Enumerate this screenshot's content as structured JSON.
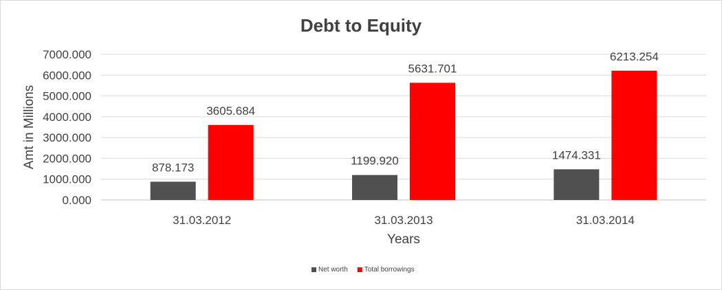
{
  "chart_data": {
    "type": "bar",
    "title": "Debt to Equity",
    "xlabel": "Years",
    "ylabel": "Amt in Millions",
    "categories": [
      "31.03.2012",
      "31.03.2013",
      "31.03.2014"
    ],
    "series": [
      {
        "name": "Net worth",
        "color": "#505050",
        "values": [
          878.173,
          1199.92,
          1474.331
        ],
        "labels": [
          "878.173",
          "1199.920",
          "1474.331"
        ]
      },
      {
        "name": "Total borrowings",
        "color": "#ff0000",
        "values": [
          3605.684,
          5631.701,
          6213.254
        ],
        "labels": [
          "3605.684",
          "5631.701",
          "6213.254"
        ]
      }
    ],
    "ylim": [
      0,
      7000
    ],
    "yticks": [
      0,
      1000,
      2000,
      3000,
      4000,
      5000,
      6000,
      7000
    ],
    "ytick_labels": [
      "0.000",
      "1000.000",
      "2000.000",
      "3000.000",
      "4000.000",
      "5000.000",
      "6000.000",
      "7000.000"
    ],
    "grid": true,
    "legend_position": "bottom"
  }
}
